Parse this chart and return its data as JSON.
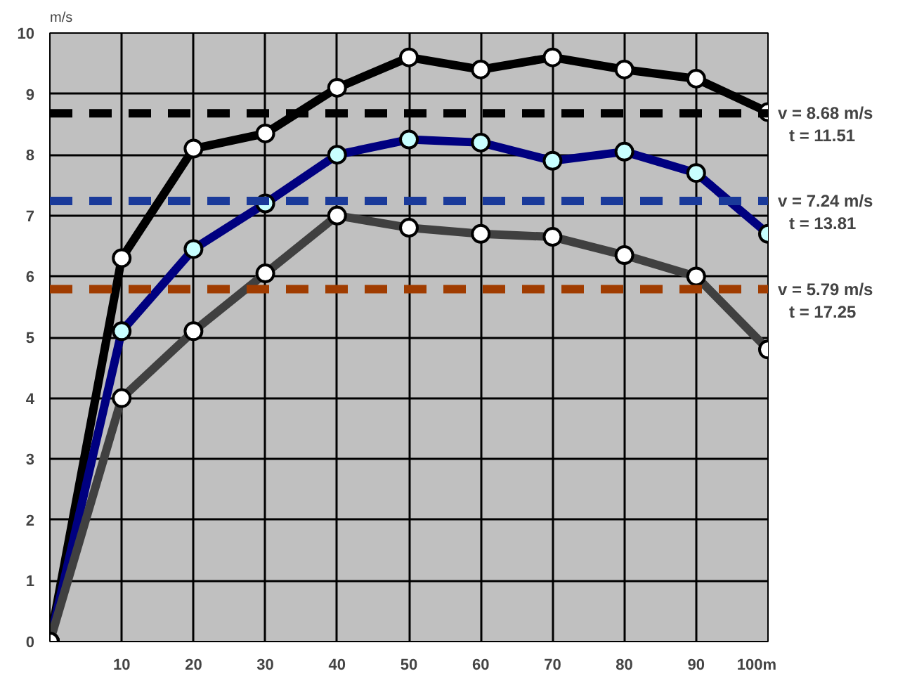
{
  "chart_data": {
    "type": "line",
    "ylabel": "m/s",
    "x": [
      0,
      10,
      20,
      30,
      40,
      50,
      60,
      70,
      80,
      90,
      100
    ],
    "series": [
      {
        "color": "#000000",
        "values": [
          0,
          6.3,
          8.1,
          8.35,
          9.1,
          9.6,
          9.4,
          9.6,
          9.4,
          9.25,
          8.7
        ]
      },
      {
        "color": "#000080",
        "values": [
          0,
          5.1,
          6.45,
          7.2,
          8.0,
          8.25,
          8.2,
          7.9,
          8.05,
          7.7,
          6.7
        ]
      },
      {
        "color": "#404040",
        "values": [
          0,
          4.0,
          5.1,
          6.05,
          7.0,
          6.8,
          6.7,
          6.65,
          6.35,
          6.0,
          4.8
        ]
      }
    ],
    "xlim": [
      0,
      100
    ],
    "ylim": [
      0,
      10
    ],
    "xticks": [
      10,
      20,
      30,
      40,
      50,
      60,
      70,
      80,
      90,
      {
        "value": 100,
        "label": "100m"
      }
    ],
    "yticks": [
      0,
      1,
      2,
      3,
      4,
      5,
      6,
      7,
      8,
      9,
      10
    ],
    "ref_lines": [
      {
        "axis": "y",
        "value": 8.68,
        "label": "v = 8.68 m/s\nt = 11.51",
        "color": "#000000",
        "line_style": "dashed"
      },
      {
        "axis": "y",
        "value": 7.24,
        "label": "v = 7.24 m/s\nt = 13.81",
        "color": "#1a3a9a",
        "line_style": "dashed"
      },
      {
        "axis": "y",
        "value": 5.79,
        "label": "v = 5.79 m/s\nt = 17.25",
        "color": "#a03c00",
        "line_style": "dashed"
      }
    ],
    "grid": true,
    "marker": "circle",
    "line_style": "solid"
  }
}
